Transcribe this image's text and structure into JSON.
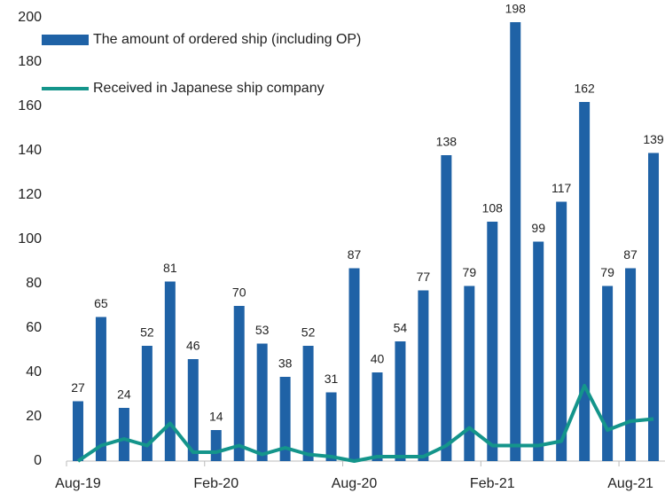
{
  "chart_data": {
    "type": "bar-line",
    "categories": [
      "Aug-19",
      null,
      null,
      null,
      null,
      null,
      "Feb-20",
      null,
      null,
      null,
      null,
      null,
      "Aug-20",
      null,
      null,
      null,
      null,
      null,
      "Feb-21",
      null,
      null,
      null,
      null,
      null,
      "Aug-21",
      null
    ],
    "series": [
      {
        "name": "The amount of ordered ship (including OP)",
        "type": "bar",
        "color": "#1f62a6",
        "values": [
          27,
          65,
          24,
          52,
          81,
          46,
          14,
          70,
          53,
          38,
          52,
          31,
          87,
          40,
          54,
          77,
          138,
          79,
          108,
          198,
          99,
          117,
          162,
          79,
          87,
          139
        ]
      },
      {
        "name": "Received in Japanese ship company",
        "type": "line",
        "color": "#14958b",
        "values": [
          0,
          7,
          10,
          7,
          17,
          4,
          4,
          7,
          3,
          6,
          3,
          2,
          0,
          2,
          2,
          2,
          7,
          15,
          7,
          7,
          7,
          9,
          34,
          14,
          18,
          19
        ]
      }
    ],
    "ylim": [
      0,
      200
    ],
    "yticks": [
      0,
      20,
      40,
      60,
      80,
      100,
      120,
      140,
      160,
      180,
      200
    ],
    "grid": false,
    "legend": "top-left"
  }
}
